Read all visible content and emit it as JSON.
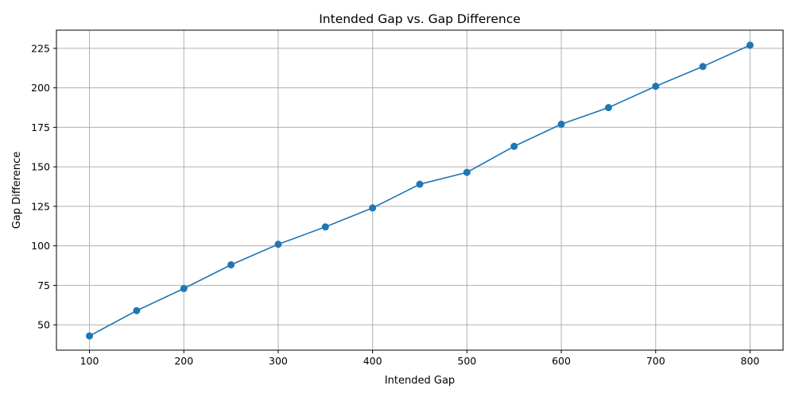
{
  "chart_data": {
    "type": "line",
    "title": "Intended Gap vs. Gap Difference",
    "xlabel": "Intended Gap",
    "ylabel": "Gap Difference",
    "x": [
      100,
      150,
      200,
      250,
      300,
      350,
      400,
      450,
      500,
      550,
      600,
      650,
      700,
      750,
      800
    ],
    "series": [
      {
        "values": [
          43,
          59,
          73,
          88,
          101,
          112,
          124,
          139,
          146.5,
          163,
          177,
          187.5,
          201,
          213.5,
          227
        ],
        "color": "#1f77b4"
      }
    ],
    "xlim": [
      65,
      835
    ],
    "ylim": [
      34,
      236.5
    ],
    "xticks": [
      100,
      200,
      300,
      400,
      500,
      600,
      700,
      800
    ],
    "yticks": [
      50,
      75,
      100,
      125,
      150,
      175,
      200,
      225
    ],
    "grid": true,
    "marker": "circle"
  }
}
